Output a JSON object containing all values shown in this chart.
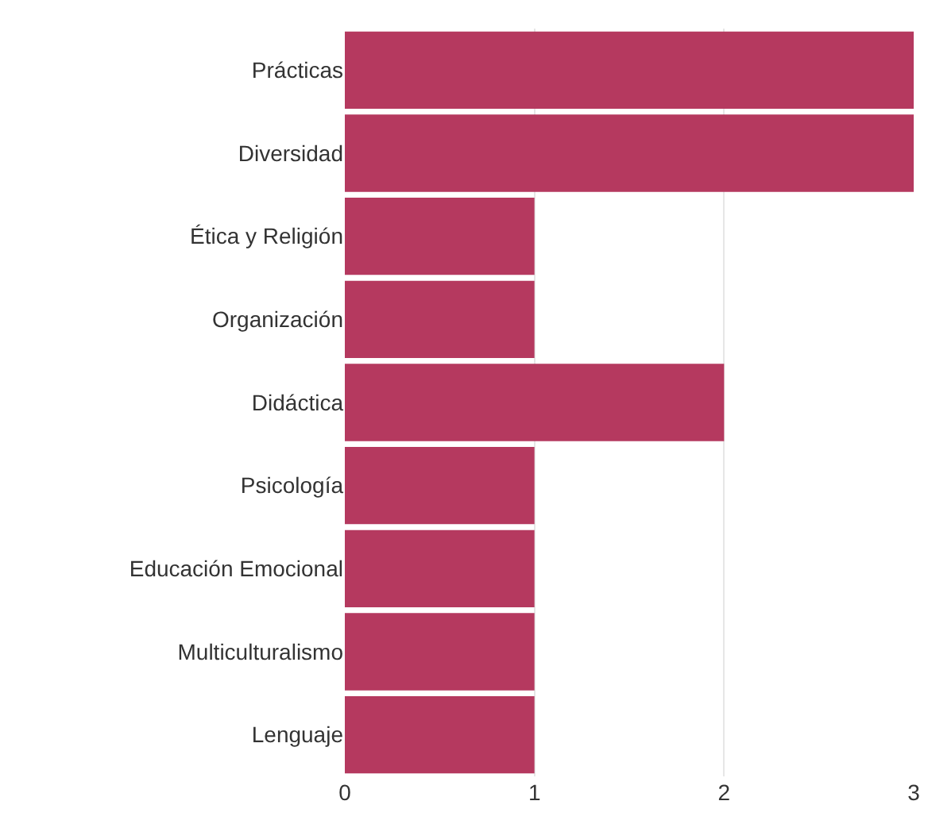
{
  "chart_data": {
    "type": "bar",
    "orientation": "horizontal",
    "categories": [
      "Prácticas",
      "Diversidad",
      "Ética y Religión",
      "Organización",
      "Didáctica",
      "Psicología",
      "Educación Emocional",
      "Multiculturalismo",
      "Lenguaje"
    ],
    "values": [
      3,
      3,
      1,
      1,
      2,
      1,
      1,
      1,
      1
    ],
    "color": "#b5395f",
    "xlim": [
      0,
      3
    ],
    "xticks": [
      0,
      1,
      2,
      3
    ],
    "grid": "x"
  }
}
